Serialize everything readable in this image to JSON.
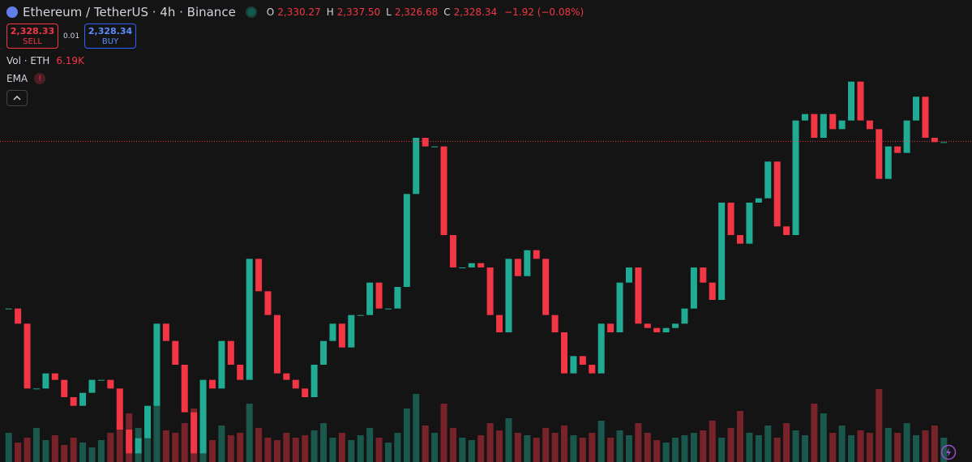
{
  "header": {
    "symbol": "Ethereum / TetherUS · 4h · Binance",
    "ohlc": [
      {
        "label": "O",
        "value": "2,330.27"
      },
      {
        "label": "H",
        "value": "2,337.50"
      },
      {
        "label": "L",
        "value": "2,326.68"
      },
      {
        "label": "C",
        "value": "2,328.34"
      }
    ],
    "change": "−1.92 (−0.08%)"
  },
  "trade": {
    "sell_price": "2,328.33",
    "sell_label": "SELL",
    "spread": "0.01",
    "buy_price": "2,328.34",
    "buy_label": "BUY"
  },
  "indicators": {
    "volume_label": "Vol · ETH",
    "volume_value": "6.19K",
    "ema_label": "EMA"
  },
  "chart_data": {
    "type": "candlestick",
    "closes": [
      2251,
      2244,
      2214,
      2214,
      2221,
      2218,
      2210,
      2206,
      2212,
      2218,
      2218,
      2214,
      2195,
      2184,
      2191,
      2206,
      2244,
      2236,
      2225,
      2203,
      2184,
      2218,
      2214,
      2236,
      2225,
      2218,
      2274,
      2259,
      2248,
      2221,
      2218,
      2214,
      2210,
      2225,
      2236,
      2244,
      2233,
      2248,
      2248,
      2263,
      2251,
      2251,
      2261,
      2304,
      2330,
      2326,
      2326,
      2285,
      2270,
      2270,
      2272,
      2270,
      2248,
      2240,
      2274,
      2266,
      2278,
      2274,
      2248,
      2240,
      2221,
      2229,
      2225,
      2221,
      2244,
      2240,
      2263,
      2270,
      2244,
      2242,
      2240,
      2242,
      2244,
      2251,
      2270,
      2263,
      2255,
      2300,
      2285,
      2281,
      2300,
      2302,
      2319,
      2289,
      2285,
      2338,
      2341,
      2330,
      2341,
      2334,
      2338,
      2356,
      2338,
      2334,
      2311,
      2326,
      2323,
      2338,
      2349,
      2330,
      2328,
      2328
    ],
    "volumes": [
      12,
      8,
      10,
      14,
      9,
      11,
      7,
      10,
      8,
      6,
      9,
      12,
      15,
      20,
      14,
      11,
      25,
      13,
      12,
      16,
      22,
      18,
      9,
      15,
      11,
      12,
      24,
      14,
      10,
      9,
      12,
      10,
      11,
      13,
      16,
      10,
      12,
      9,
      11,
      14,
      10,
      8,
      12,
      22,
      28,
      15,
      12,
      24,
      14,
      10,
      9,
      11,
      16,
      13,
      18,
      12,
      11,
      10,
      14,
      12,
      15,
      11,
      10,
      12,
      17,
      10,
      13,
      11,
      16,
      12,
      9,
      8,
      10,
      11,
      12,
      13,
      17,
      10,
      14,
      21,
      12,
      11,
      15,
      10,
      16,
      13,
      11,
      24,
      20,
      12,
      15,
      11,
      13,
      12,
      30,
      14,
      12,
      16,
      11,
      13,
      15,
      10
    ],
    "ylim": [
      2180,
      2375
    ],
    "volume_lim": [
      0,
      40
    ],
    "up_color": "#22ab94",
    "down_color": "#f23645",
    "last_price": 2328.34
  }
}
